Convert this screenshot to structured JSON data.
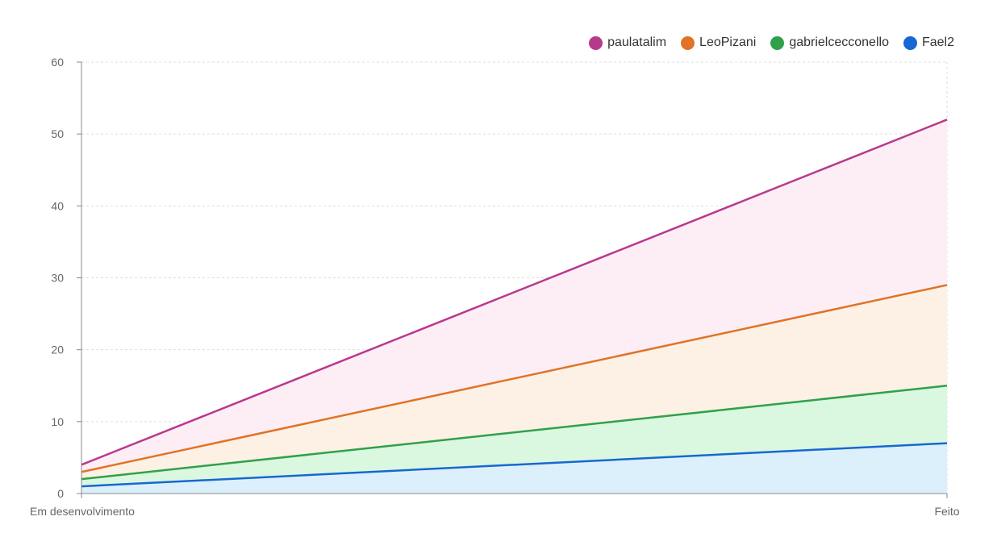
{
  "chart_data": {
    "type": "area",
    "stacked": true,
    "title": "",
    "xlabel": "",
    "ylabel": "",
    "categories": [
      "Em desenvolvimento",
      "Feito"
    ],
    "ylim": [
      0,
      60
    ],
    "yticks": [
      0,
      10,
      20,
      30,
      40,
      50,
      60
    ],
    "grid": true,
    "legend_position": "top-right",
    "series": [
      {
        "name": "paulatalim",
        "values": [
          1,
          23
        ],
        "color": "#b83a8a",
        "fill": "#fdeef6"
      },
      {
        "name": "LeoPizani",
        "values": [
          1,
          14
        ],
        "color": "#e07326",
        "fill": "#fdf0e4"
      },
      {
        "name": "gabrielcecconello",
        "values": [
          1,
          8
        ],
        "color": "#2fa14a",
        "fill": "#daf7df"
      },
      {
        "name": "Fael2",
        "values": [
          1,
          7
        ],
        "color": "#1767d4",
        "fill": "#dcf0fb"
      }
    ]
  }
}
